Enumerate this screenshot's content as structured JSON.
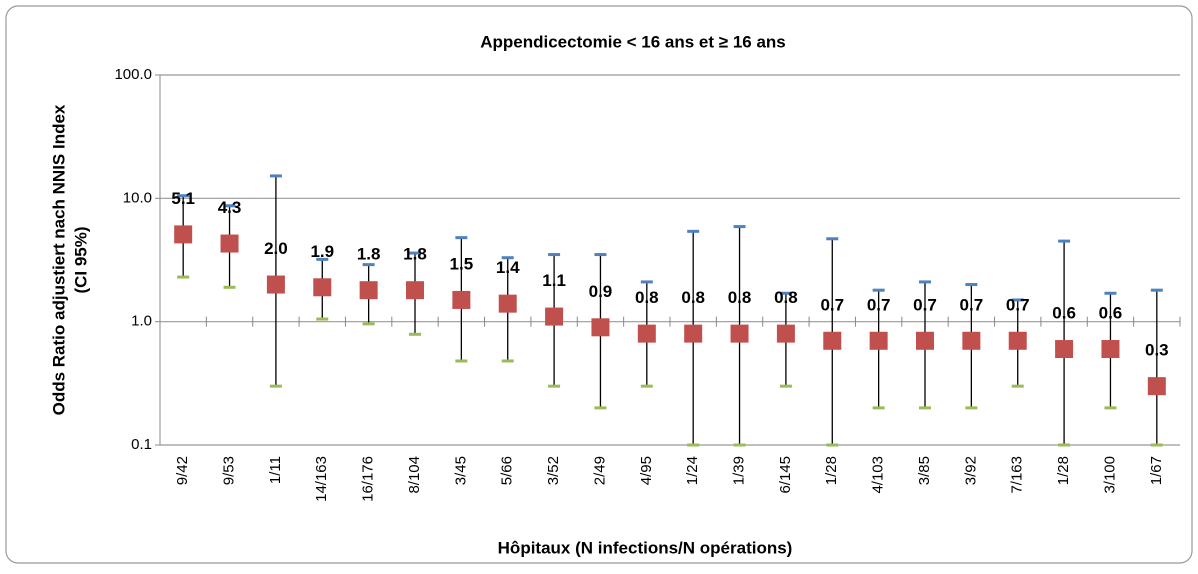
{
  "chart_data": {
    "type": "errorpoint",
    "title": "Appendicectomie < 16 ans et  ≥ 16 ans",
    "xlabel": "Hôpitaux (N infections/N opérations)",
    "ylabel": [
      "Odds Ratio adjustiert nach NNIS Index",
      "(CI 95%)"
    ],
    "categories": [
      "9/42",
      "9/53",
      "1/11",
      "14/163",
      "16/176",
      "8/104",
      "3/45",
      "5/66",
      "3/52",
      "2/49",
      "4/95",
      "1/24",
      "1/39",
      "6/145",
      "1/28",
      "4/103",
      "3/85",
      "3/92",
      "7/163",
      "1/28",
      "3/100",
      "1/67"
    ],
    "values": [
      5.1,
      4.3,
      2.0,
      1.9,
      1.8,
      1.8,
      1.5,
      1.4,
      1.1,
      0.9,
      0.8,
      0.8,
      0.8,
      0.8,
      0.7,
      0.7,
      0.7,
      0.7,
      0.7,
      0.6,
      0.6,
      0.3
    ],
    "value_labels": [
      "5.1",
      "4.3",
      "2.0",
      "1.9",
      "1.8",
      "1.8",
      "1.5",
      "1.4",
      "1.1",
      "0.9",
      "0.8",
      "0.8",
      "0.8",
      "0.8",
      "0.7",
      "0.7",
      "0.7",
      "0.7",
      "0.7",
      "0.6",
      "0.6",
      "0.3"
    ],
    "upper": [
      10.5,
      8.7,
      15.2,
      3.2,
      2.9,
      3.6,
      4.8,
      3.3,
      3.5,
      3.5,
      2.1,
      5.4,
      5.9,
      1.7,
      4.7,
      1.8,
      2.1,
      2.0,
      1.5,
      4.5,
      1.7,
      1.8
    ],
    "lower": [
      2.3,
      1.9,
      0.3,
      1.05,
      0.96,
      0.79,
      0.48,
      0.48,
      0.3,
      0.2,
      0.3,
      0.1,
      0.1,
      0.3,
      0.1,
      0.2,
      0.2,
      0.2,
      0.3,
      0.1,
      0.2,
      0.1
    ],
    "color": "#c0504d",
    "upper_color": "#4f81bd",
    "lower_color": "#9bbb59",
    "log_y": true,
    "grid": true,
    "ylim": [
      0.1,
      100
    ],
    "yticks": [
      {
        "value": 0.1,
        "label": "0.1"
      },
      {
        "value": 1,
        "label": "1.0"
      },
      {
        "value": 10,
        "label": "10.0"
      },
      {
        "value": 100,
        "label": "100.0"
      }
    ]
  }
}
